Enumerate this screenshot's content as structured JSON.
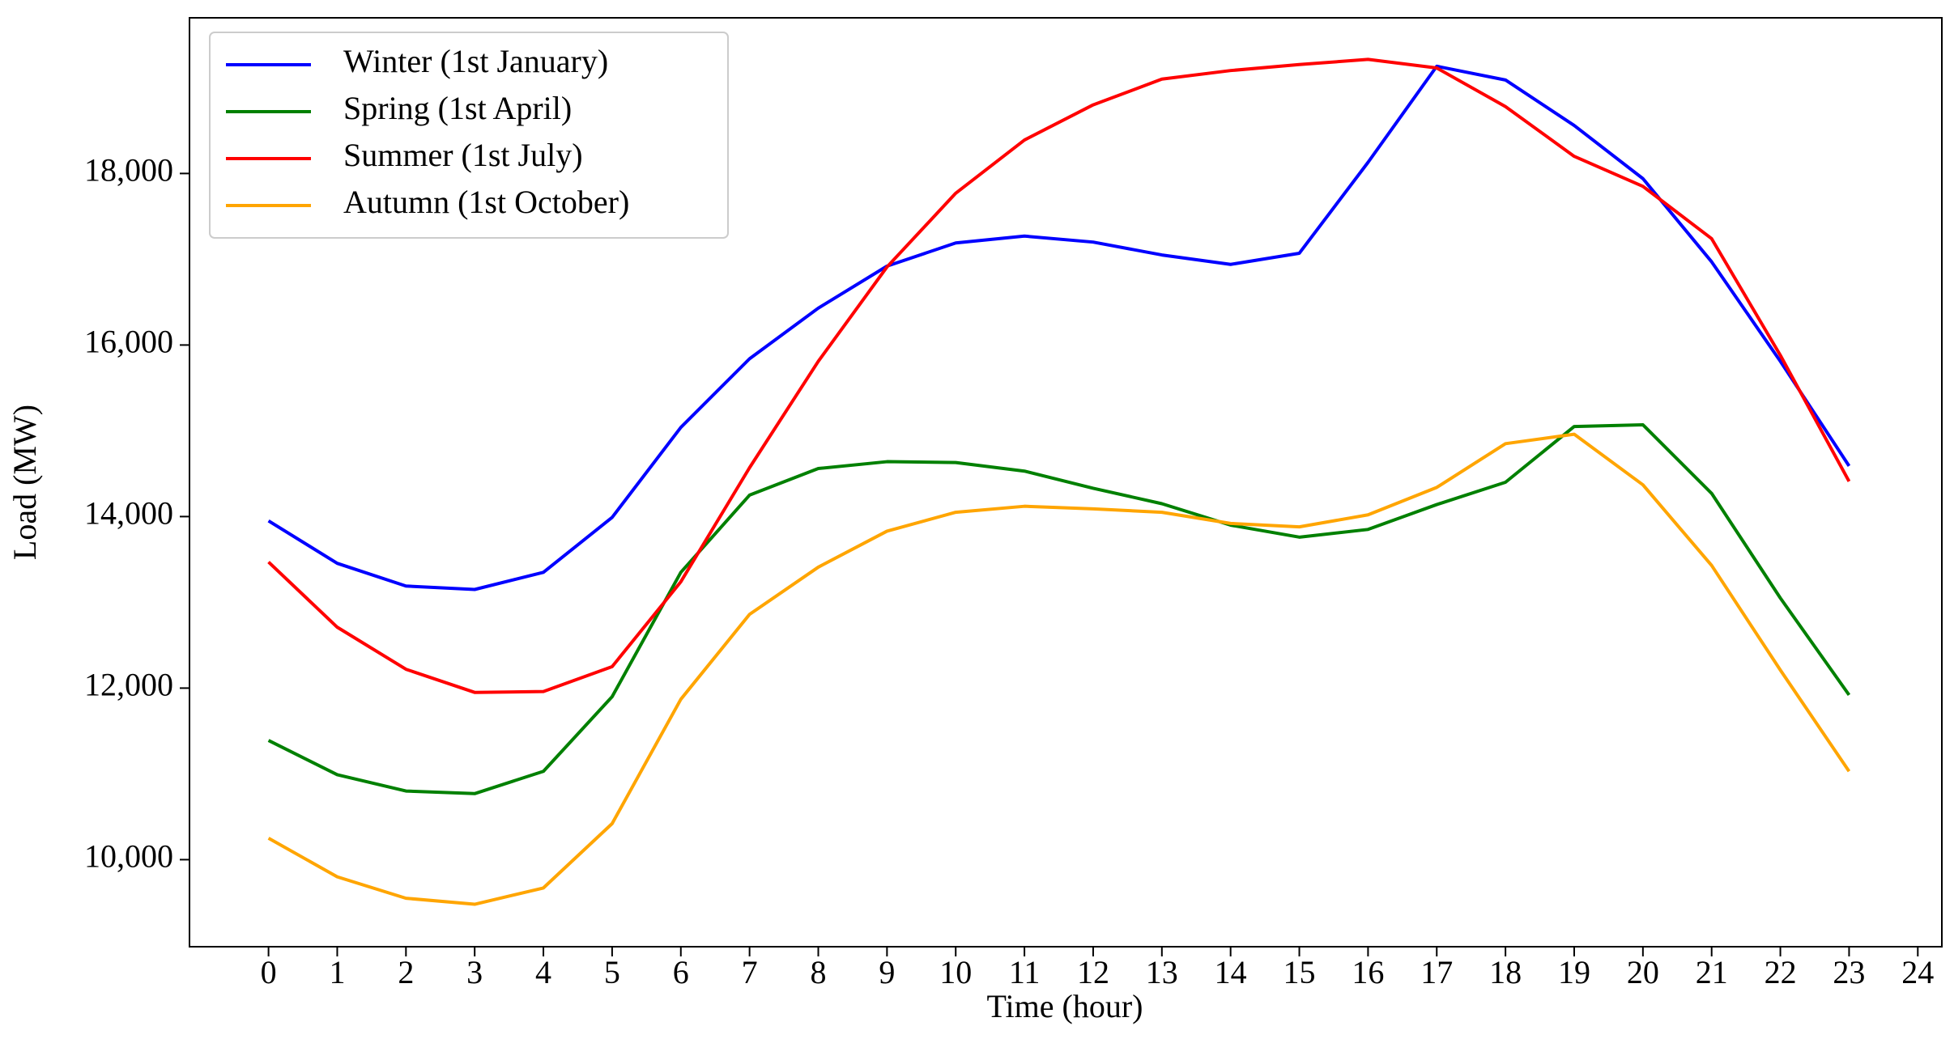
{
  "chart_data": {
    "type": "line",
    "x_label": "Time (hour)",
    "y_label": "Load (MW)",
    "x": [
      0,
      1,
      2,
      3,
      4,
      5,
      6,
      7,
      8,
      9,
      10,
      11,
      12,
      13,
      14,
      15,
      16,
      17,
      18,
      19,
      20,
      21,
      22,
      23
    ],
    "series": [
      {
        "name": "Winter (1st January)",
        "color": "#0000ff",
        "values": [
          13950,
          13455,
          13190,
          13150,
          13350,
          13990,
          15040,
          15840,
          16430,
          16920,
          17190,
          17270,
          17200,
          17050,
          16940,
          17070,
          18130,
          19250,
          19090,
          18560,
          17940,
          16970,
          15810,
          14590
        ]
      },
      {
        "name": "Spring (1st April)",
        "color": "#008000",
        "values": [
          11390,
          10990,
          10800,
          10770,
          11030,
          11900,
          13350,
          14250,
          14560,
          14640,
          14630,
          14530,
          14330,
          14150,
          13900,
          13760,
          13850,
          14140,
          14400,
          15050,
          15070,
          14270,
          13050,
          11920
        ]
      },
      {
        "name": "Summer (1st July)",
        "color": "#ff0000",
        "values": [
          13470,
          12710,
          12220,
          11950,
          11960,
          12250,
          13240,
          14570,
          15810,
          16910,
          17770,
          18390,
          18800,
          19100,
          19200,
          19270,
          19330,
          19230,
          18780,
          18200,
          17850,
          17240,
          15880,
          14410
        ]
      },
      {
        "name": "Autumn (1st October)",
        "color": "#ffa500",
        "values": [
          10250,
          9800,
          9550,
          9480,
          9670,
          10420,
          11870,
          12860,
          13410,
          13830,
          14050,
          14120,
          14090,
          14050,
          13920,
          13880,
          14020,
          14340,
          14850,
          14960,
          14370,
          13430,
          12210,
          11030
        ]
      }
    ],
    "xlim": [
      -1.15,
      24.35
    ],
    "ylim": [
      8985,
      19815
    ],
    "xticks": [
      0,
      1,
      2,
      3,
      4,
      5,
      6,
      7,
      8,
      9,
      10,
      11,
      12,
      13,
      14,
      15,
      16,
      17,
      18,
      19,
      20,
      21,
      22,
      23,
      24
    ],
    "yticks": [
      {
        "value": 10000,
        "label": "10,000"
      },
      {
        "value": 12000,
        "label": "12,000"
      },
      {
        "value": 14000,
        "label": "14,000"
      },
      {
        "value": 16000,
        "label": "16,000"
      },
      {
        "value": 18000,
        "label": "18,000"
      }
    ],
    "legend": "upper left",
    "grid": false
  }
}
